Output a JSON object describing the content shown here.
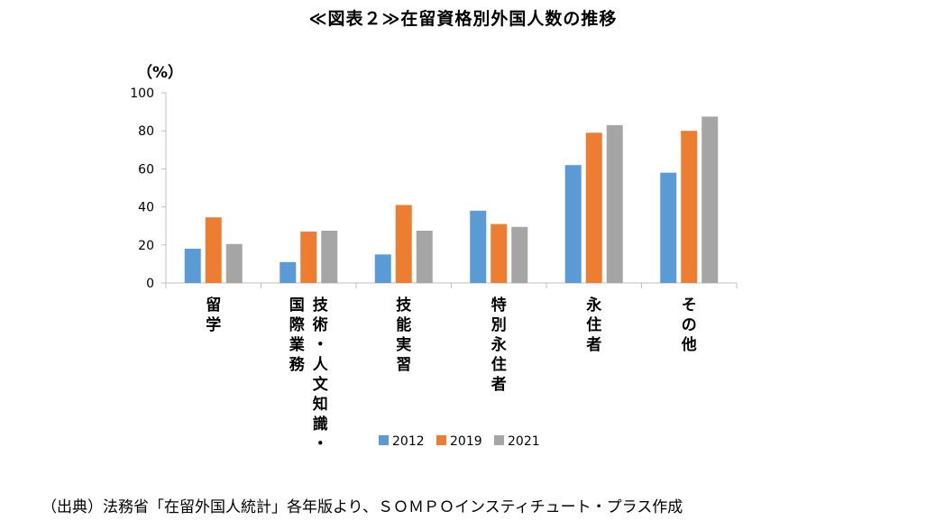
{
  "page": {
    "title": "≪図表２≫在留資格別外国人数の推移",
    "source": "（出典）法務省「在留外国人統計」各年版より、ＳＯＭＰＯインスティチュート・プラス作成"
  },
  "chart_data": {
    "type": "bar",
    "title": "≪図表２≫在留資格別外国人数の推移",
    "ylabel": "（%）",
    "xlabel": "",
    "ylim": [
      0,
      100
    ],
    "yticks": [
      0,
      20,
      40,
      60,
      80,
      100
    ],
    "grid": false,
    "legend_position": "bottom",
    "categories": [
      "留学",
      "技術・人文知識・国際業務",
      "技能実習",
      "特別永住者",
      "永住者",
      "その他"
    ],
    "category_label_columns": [
      [
        "留学"
      ],
      [
        "技術・人文知識・",
        "国際業務"
      ],
      [
        "技能実習"
      ],
      [
        "特別永住者"
      ],
      [
        "永住者"
      ],
      [
        "その他"
      ]
    ],
    "series": [
      {
        "name": "2012",
        "color": "#5b9bd5",
        "values": [
          18,
          11,
          15,
          38,
          62,
          58
        ]
      },
      {
        "name": "2019",
        "color": "#ed7d31",
        "values": [
          34.5,
          27,
          41,
          31,
          79,
          80
        ]
      },
      {
        "name": "2021",
        "color": "#a5a5a5",
        "values": [
          20.5,
          27.5,
          27.5,
          29.5,
          83,
          87.5
        ]
      }
    ]
  }
}
